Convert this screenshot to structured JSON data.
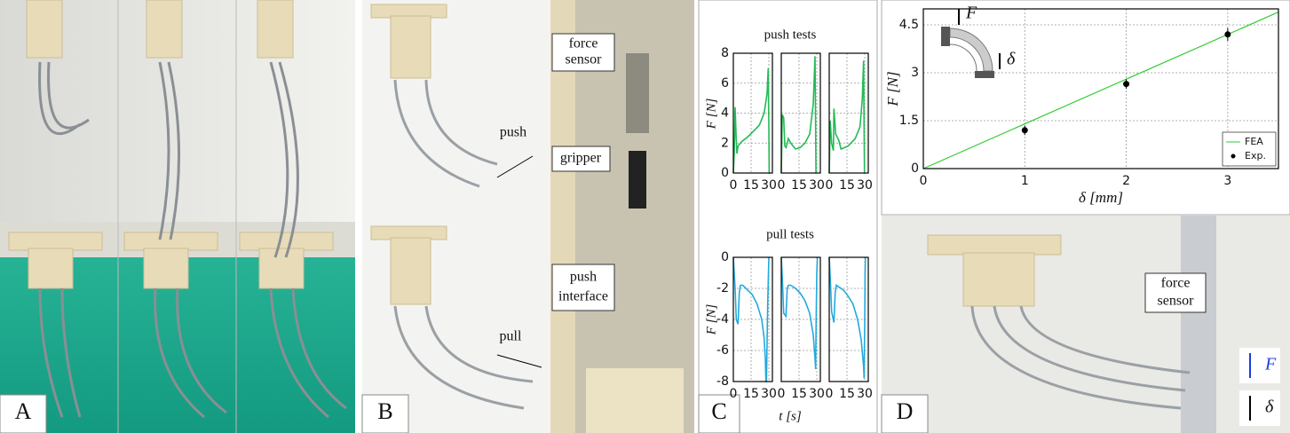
{
  "figure": {
    "panels": [
      "A",
      "B",
      "C",
      "D"
    ],
    "push_title": "push tests",
    "pull_title": "pull tests",
    "c_xlabel": "t [s]",
    "push_ylabel": "F [N]",
    "pull_ylabel": "F [N]",
    "b_labels": {
      "force_sensor": [
        "force",
        "sensor"
      ],
      "push": "push",
      "gripper": "gripper",
      "push_interface": [
        "push",
        "interface"
      ],
      "pull": "pull"
    },
    "d_labels": {
      "force_sensor": [
        "force",
        "sensor"
      ],
      "force": "F",
      "displacement": "δ"
    },
    "inset": {
      "force": "F",
      "displacement": "δ"
    }
  },
  "chart_data": [
    {
      "type": "line",
      "color": "#22bb55",
      "x": [
        0,
        0.8,
        1.5,
        2.5,
        3,
        4,
        7,
        12,
        17,
        22,
        26,
        28.5,
        29.5,
        30,
        30.3,
        31
      ],
      "values": [
        0,
        1.5,
        4.4,
        2.2,
        1.3,
        1.8,
        2.1,
        2.4,
        2.8,
        3.2,
        4,
        5.3,
        7,
        3,
        0,
        0
      ],
      "xlim": [
        0,
        33
      ],
      "ylim": [
        0,
        8
      ],
      "xticks": [
        0,
        15,
        30
      ],
      "yticks": [
        0,
        2,
        4,
        6,
        8
      ],
      "grid": true
    },
    {
      "type": "line",
      "color": "#22bb55",
      "x": [
        0,
        0.8,
        2,
        3,
        4,
        6,
        8,
        12,
        16,
        20,
        24,
        27,
        28.5,
        29,
        29.3,
        29.6
      ],
      "values": [
        0,
        3.9,
        3.7,
        1.8,
        1.7,
        2.3,
        2,
        1.6,
        1.7,
        2,
        2.6,
        4.6,
        7.8,
        3,
        0,
        0
      ],
      "xlim": [
        0,
        33
      ],
      "ylim": [
        0,
        8
      ],
      "xticks": [
        0,
        15,
        30
      ],
      "yticks": [
        0,
        2,
        4,
        6,
        8
      ],
      "grid": true
    },
    {
      "type": "line",
      "color": "#22bb55",
      "x": [
        0,
        0.8,
        2,
        3.5,
        4,
        5.5,
        8,
        10,
        16,
        22,
        26,
        28,
        29,
        29.5,
        29.8,
        30
      ],
      "values": [
        0,
        3.5,
        2,
        1.5,
        4.3,
        2.6,
        2.2,
        1.6,
        1.8,
        2.3,
        3.1,
        5,
        7.5,
        3,
        0,
        0
      ],
      "xlim": [
        0,
        33
      ],
      "ylim": [
        0,
        8
      ],
      "xticks": [
        0,
        15,
        30
      ],
      "yticks": [
        0,
        2,
        4,
        6,
        8
      ],
      "grid": true
    },
    {
      "type": "line",
      "color": "#22aadd",
      "x": [
        0,
        1.5,
        2.5,
        4,
        5,
        6,
        8,
        12,
        16,
        20,
        24,
        26,
        27,
        27.5,
        28,
        29,
        30
      ],
      "values": [
        0,
        -2,
        -4,
        -4.3,
        -2.3,
        -1.8,
        -1.8,
        -2.1,
        -2.4,
        -3,
        -4,
        -5.2,
        -6.5,
        -8,
        -8,
        -3,
        0
      ],
      "xlim": [
        0,
        33
      ],
      "ylim": [
        -8,
        0
      ],
      "xticks": [
        0,
        15,
        30
      ],
      "yticks": [
        0,
        -2,
        -4,
        -6,
        -8
      ],
      "grid": true
    },
    {
      "type": "line",
      "color": "#22aadd",
      "x": [
        0,
        1,
        2,
        4,
        5,
        6,
        8,
        12,
        16,
        20,
        24,
        27,
        28.5,
        29,
        29.5,
        30,
        30.5
      ],
      "values": [
        0,
        -1.5,
        -3.6,
        -3.8,
        -2,
        -1.8,
        -1.8,
        -2,
        -2.3,
        -2.8,
        -3.6,
        -5,
        -6.5,
        -7.2,
        -4,
        -1,
        0
      ],
      "xlim": [
        0,
        33
      ],
      "ylim": [
        -8,
        0
      ],
      "xticks": [
        0,
        15,
        30
      ],
      "yticks": [
        0,
        -2,
        -4,
        -6,
        -8
      ],
      "grid": true
    },
    {
      "type": "line",
      "color": "#22aadd",
      "x": [
        0,
        1,
        2,
        4,
        5,
        6,
        8,
        12,
        16,
        20,
        24,
        27,
        29,
        29.5,
        30,
        30.3,
        30.6
      ],
      "values": [
        0,
        -1.5,
        -3.5,
        -4.2,
        -2.3,
        -1.8,
        -1.9,
        -2.1,
        -2.5,
        -3,
        -4,
        -5.3,
        -7,
        -7.8,
        -4,
        -1,
        0
      ],
      "xlim": [
        0,
        33
      ],
      "ylim": [
        -8,
        0
      ],
      "xticks": [
        0,
        15,
        30
      ],
      "yticks": [
        0,
        -2,
        -4,
        -6,
        -8
      ],
      "grid": true
    },
    {
      "type": "line",
      "xlabel": "δ [mm]",
      "ylabel": "F [N]",
      "xlim": [
        0,
        3.5
      ],
      "ylim": [
        0,
        5
      ],
      "xticks": [
        0,
        1,
        2,
        3
      ],
      "yticks": [
        0,
        1.5,
        3,
        4.5
      ],
      "grid": true,
      "legend": "lower right",
      "series": [
        {
          "name": "FEA",
          "color": "#33cc33",
          "x": [
            0,
            3.5
          ],
          "values": [
            0,
            4.9
          ]
        },
        {
          "name": "Exp.",
          "color": "#000000",
          "x": [
            1,
            2,
            3
          ],
          "values": [
            1.2,
            2.65,
            4.2
          ],
          "errors": [
            0.15,
            0.15,
            0.2
          ]
        }
      ]
    }
  ]
}
